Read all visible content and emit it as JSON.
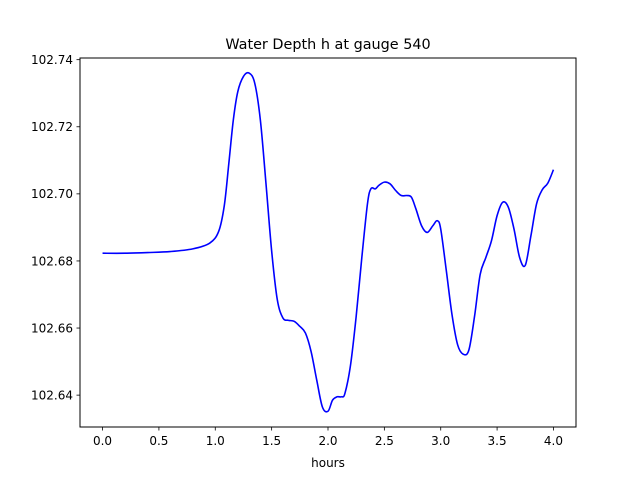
{
  "chart_data": {
    "type": "line",
    "title": "Water Depth h at gauge 540",
    "xlabel": "hours",
    "ylabel": "",
    "xlim": [
      -0.2,
      4.2
    ],
    "ylim": [
      102.6305,
      102.7405
    ],
    "xticks": [
      0.0,
      0.5,
      1.0,
      1.5,
      2.0,
      2.5,
      3.0,
      3.5,
      4.0
    ],
    "xtick_labels": [
      "0.0",
      "0.5",
      "1.0",
      "1.5",
      "2.0",
      "2.5",
      "3.0",
      "3.5",
      "4.0"
    ],
    "yticks": [
      102.64,
      102.66,
      102.68,
      102.7,
      102.72,
      102.74
    ],
    "ytick_labels": [
      "102.64",
      "102.66",
      "102.68",
      "102.70",
      "102.72",
      "102.74"
    ],
    "grid": false,
    "series": [
      {
        "name": "",
        "color": "#0000ff",
        "x": [
          0.0,
          0.2,
          0.4,
          0.6,
          0.8,
          0.95,
          1.03,
          1.08,
          1.12,
          1.16,
          1.2,
          1.25,
          1.3,
          1.35,
          1.4,
          1.45,
          1.5,
          1.55,
          1.6,
          1.65,
          1.7,
          1.75,
          1.8,
          1.85,
          1.9,
          1.95,
          2.0,
          2.04,
          2.08,
          2.12,
          2.15,
          2.2,
          2.25,
          2.3,
          2.35,
          2.38,
          2.42,
          2.45,
          2.5,
          2.55,
          2.6,
          2.65,
          2.7,
          2.74,
          2.78,
          2.83,
          2.88,
          2.93,
          2.97,
          3.0,
          3.05,
          3.1,
          3.15,
          3.2,
          3.25,
          3.3,
          3.35,
          3.4,
          3.45,
          3.5,
          3.55,
          3.6,
          3.65,
          3.7,
          3.75,
          3.8,
          3.85,
          3.9,
          3.95,
          4.0
        ],
        "values": [
          102.6823,
          102.6823,
          102.6825,
          102.6828,
          102.6836,
          102.6853,
          102.6888,
          102.6965,
          102.709,
          102.722,
          102.7305,
          102.735,
          102.736,
          102.733,
          102.722,
          102.703,
          102.683,
          102.6685,
          102.663,
          102.6623,
          102.662,
          102.6605,
          102.6585,
          102.653,
          102.6445,
          102.6365,
          102.6352,
          102.6385,
          102.6395,
          102.6395,
          102.6405,
          102.649,
          102.6635,
          102.681,
          102.697,
          102.7015,
          102.7015,
          102.7025,
          102.7035,
          102.703,
          102.701,
          102.6995,
          102.6995,
          102.699,
          102.6955,
          102.6905,
          102.6885,
          102.6905,
          102.692,
          102.6895,
          102.677,
          102.664,
          102.655,
          102.6522,
          102.6535,
          102.6635,
          102.676,
          102.681,
          102.686,
          102.6935,
          102.6975,
          102.696,
          102.6895,
          102.681,
          102.6787,
          102.6875,
          102.697,
          102.7012,
          102.7032,
          102.7072
        ]
      }
    ]
  }
}
